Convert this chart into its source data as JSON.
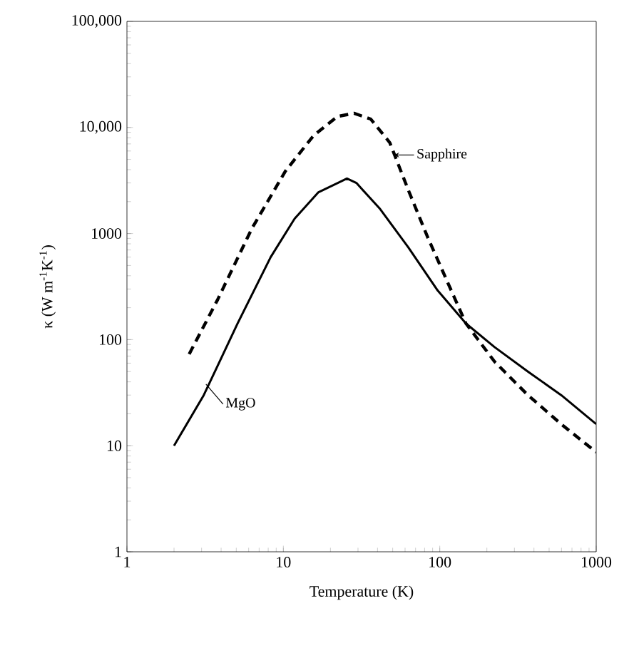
{
  "chart_data": {
    "type": "line",
    "xlabel": "Temperature (K)",
    "ylabel": "κ (W m$^{-1}$K$^{-1}$)",
    "log": "xy",
    "xlim": [
      1,
      1000
    ],
    "ylim": [
      1,
      100000
    ],
    "xticks": [
      1,
      10,
      100,
      1000
    ],
    "yticks": [
      1,
      10,
      100,
      1000,
      {
        "value": 10000,
        "label": "10,000"
      },
      {
        "value": 100000,
        "label": "100,000"
      }
    ],
    "marker": "none",
    "series": [
      {
        "color": "#000000",
        "line_style": "solid",
        "x": [
          2,
          3.1,
          5.1,
          8.3,
          11.8,
          16.7,
          25.5,
          29.3,
          41.6,
          63,
          97,
          147,
          224,
          366,
          597,
          1000
        ],
        "values": [
          10,
          30,
          142,
          600,
          1380,
          2440,
          3300,
          3000,
          1700,
          740,
          290,
          142,
          85,
          50,
          30,
          16
        ]
      },
      {
        "color": "#000000",
        "line_style": "dashed",
        "x": [
          2.5,
          3.8,
          6.3,
          10.3,
          15.6,
          22.2,
          28.3,
          36.2,
          47.9,
          63,
          84,
          111,
          147,
          224,
          366,
          597,
          1000
        ],
        "values": [
          73,
          238,
          1120,
          3870,
          8380,
          12700,
          13600,
          12000,
          7200,
          2560,
          910,
          360,
          142,
          62,
          30,
          16,
          8.7
        ]
      }
    ],
    "annotations": [
      {
        "text": "Sapphire",
        "x": 51,
        "y": 5500
      },
      {
        "text": "MgO",
        "x": 3.2,
        "y": 38
      }
    ]
  }
}
